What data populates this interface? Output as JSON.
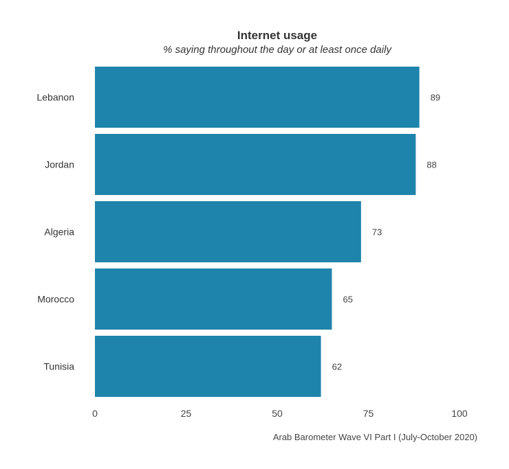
{
  "chart_data": {
    "type": "bar",
    "orientation": "horizontal",
    "title": "Internet usage",
    "subtitle": "% saying throughout the day or at least once daily",
    "categories": [
      "Lebanon",
      "Jordan",
      "Algeria",
      "Morocco",
      "Tunisia"
    ],
    "values": [
      89,
      88,
      73,
      65,
      62
    ],
    "xlim": [
      0,
      100
    ],
    "xticks": [
      0,
      25,
      50,
      75,
      100
    ],
    "bar_color": "#1f84ab",
    "grid": false,
    "legend": "none",
    "source": "Arab Barometer Wave VI Part I (July-October 2020)"
  }
}
